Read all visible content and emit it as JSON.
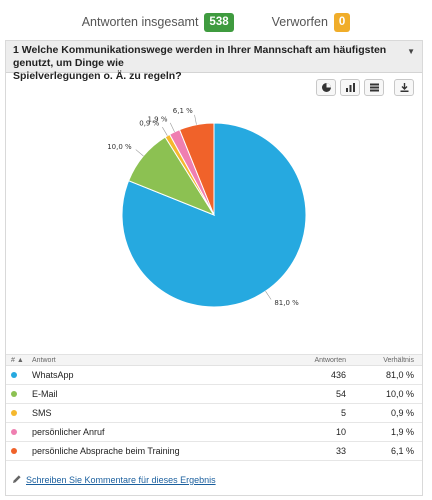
{
  "summary": {
    "total_label": "Antworten insgesamt",
    "total_value": "538",
    "discarded_label": "Verworfen",
    "discarded_value": "0"
  },
  "question": {
    "line1": "1 Welche Kommunikationswege werden in Ihrer Mannschaft am häufigsten genutzt, um Dinge wie",
    "line2": "Spielverlegungen o. Ä. zu regeln?"
  },
  "toolbar": {
    "icons": [
      "pie-chart-icon",
      "bar-chart-icon",
      "table-view-icon",
      "download-icon"
    ]
  },
  "chart_data": {
    "type": "pie",
    "categories": [
      "WhatsApp",
      "E-Mail",
      "SMS",
      "persönlicher Anruf",
      "persönliche Absprache beim Training"
    ],
    "values": [
      81.0,
      10.0,
      0.9,
      1.9,
      6.1
    ],
    "data_labels": [
      "81,0 %",
      "10,0 %",
      "0,9 %",
      "1,9 %",
      "6,1 %"
    ],
    "colors": [
      "#26a9e0",
      "#8cc152",
      "#f5b82e",
      "#ef7fb1",
      "#f0622a"
    ]
  },
  "table": {
    "headers": {
      "hash": "#",
      "answer": "Antwort",
      "count": "Antworten",
      "ratio": "Verhältnis"
    },
    "rows": [
      {
        "answer": "WhatsApp",
        "count": "436",
        "ratio": "81,0 %",
        "color": "#26a9e0"
      },
      {
        "answer": "E-Mail",
        "count": "54",
        "ratio": "10,0 %",
        "color": "#8cc152"
      },
      {
        "answer": "SMS",
        "count": "5",
        "ratio": "0,9 %",
        "color": "#f5b82e"
      },
      {
        "answer": "persönlicher Anruf",
        "count": "10",
        "ratio": "1,9 %",
        "color": "#ef7fb1"
      },
      {
        "answer": "persönliche Absprache beim Training",
        "count": "33",
        "ratio": "6,1 %",
        "color": "#f0622a"
      }
    ]
  },
  "comment_link": "Schreiben Sie Kommentare für dieses Ergebnis"
}
